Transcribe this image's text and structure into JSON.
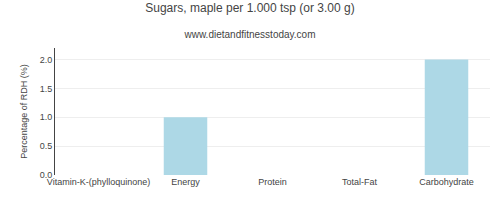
{
  "chart_data": {
    "type": "bar",
    "title": "Sugars, maple per 1.000 tsp (or 3.00 g)",
    "subtitle": "www.dietandfitnesstoday.com",
    "categories": [
      "Vitamin-K-(phylloquinone)",
      "Energy",
      "Protein",
      "Total-Fat",
      "Carbohydrate"
    ],
    "values": [
      0.0,
      1.0,
      0.0,
      0.0,
      2.0
    ],
    "color": "#add8e6",
    "ylabel": "Percentage of RDH (%)",
    "ylim": [
      0,
      2.2
    ],
    "yticks": [
      {
        "value": 0,
        "label": "0.0"
      },
      0.5,
      {
        "value": 1,
        "label": "1.0"
      },
      1.5,
      {
        "value": 2,
        "label": "2.0"
      }
    ],
    "grid": true
  }
}
